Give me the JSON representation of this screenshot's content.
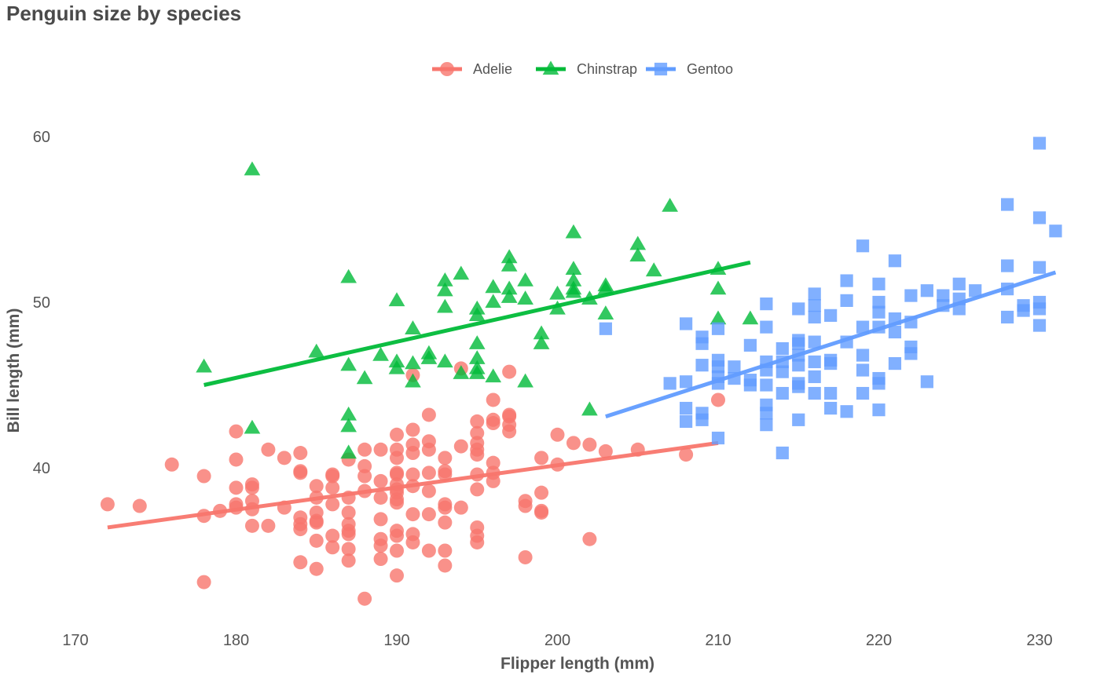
{
  "chart_data": {
    "type": "scatter",
    "title": "Penguin size by species",
    "xlabel": "Flipper length (mm)",
    "ylabel": "Bill length (mm)",
    "xlim": [
      168,
      233
    ],
    "ylim": [
      31,
      62
    ],
    "x_ticks": [
      170,
      180,
      190,
      200,
      210,
      220,
      230
    ],
    "y_ticks": [
      40,
      50,
      60
    ],
    "grid": false,
    "legend_position": "top",
    "series": [
      {
        "name": "Adelie",
        "color": "#F8766D",
        "marker": "circle",
        "trend": {
          "x": [
            172,
            210
          ],
          "y": [
            36.4,
            41.5
          ]
        },
        "points": [
          [
            172,
            37.8
          ],
          [
            174,
            37.7
          ],
          [
            176,
            40.2
          ],
          [
            178,
            39.5
          ],
          [
            178,
            37.1
          ],
          [
            178,
            33.1
          ],
          [
            179,
            37.4
          ],
          [
            180,
            42.2
          ],
          [
            180,
            40.5
          ],
          [
            180,
            38.8
          ],
          [
            180,
            37.8
          ],
          [
            180,
            37.6
          ],
          [
            181,
            39.0
          ],
          [
            181,
            38.8
          ],
          [
            181,
            38.0
          ],
          [
            181,
            37.5
          ],
          [
            181,
            36.5
          ],
          [
            182,
            41.1
          ],
          [
            182,
            36.5
          ],
          [
            183,
            40.6
          ],
          [
            183,
            37.6
          ],
          [
            184,
            40.9
          ],
          [
            184,
            39.8
          ],
          [
            184,
            39.7
          ],
          [
            184,
            37.0
          ],
          [
            184,
            36.6
          ],
          [
            184,
            36.3
          ],
          [
            184,
            34.3
          ],
          [
            185,
            38.9
          ],
          [
            185,
            38.2
          ],
          [
            185,
            37.3
          ],
          [
            185,
            36.8
          ],
          [
            185,
            36.7
          ],
          [
            185,
            35.6
          ],
          [
            185,
            33.9
          ],
          [
            186,
            39.6
          ],
          [
            186,
            39.5
          ],
          [
            186,
            38.8
          ],
          [
            186,
            37.8
          ],
          [
            186,
            35.9
          ],
          [
            186,
            35.2
          ],
          [
            187,
            40.5
          ],
          [
            187,
            38.2
          ],
          [
            187,
            37.3
          ],
          [
            187,
            36.6
          ],
          [
            187,
            36.2
          ],
          [
            187,
            36.0
          ],
          [
            187,
            35.1
          ],
          [
            187,
            34.4
          ],
          [
            188,
            41.1
          ],
          [
            188,
            40.1
          ],
          [
            188,
            39.5
          ],
          [
            188,
            38.6
          ],
          [
            188,
            32.1
          ],
          [
            189,
            41.1
          ],
          [
            189,
            39.2
          ],
          [
            189,
            38.2
          ],
          [
            189,
            36.9
          ],
          [
            189,
            35.7
          ],
          [
            189,
            35.3
          ],
          [
            189,
            34.5
          ],
          [
            190,
            42.0
          ],
          [
            190,
            41.1
          ],
          [
            190,
            40.6
          ],
          [
            190,
            39.7
          ],
          [
            190,
            39.6
          ],
          [
            190,
            39.0
          ],
          [
            190,
            38.7
          ],
          [
            190,
            38.5
          ],
          [
            190,
            38.1
          ],
          [
            190,
            37.9
          ],
          [
            190,
            36.2
          ],
          [
            190,
            35.9
          ],
          [
            190,
            35.0
          ],
          [
            190,
            33.5
          ],
          [
            191,
            45.6
          ],
          [
            191,
            42.3
          ],
          [
            191,
            41.4
          ],
          [
            191,
            40.9
          ],
          [
            191,
            39.6
          ],
          [
            191,
            38.9
          ],
          [
            191,
            37.2
          ],
          [
            191,
            36.0
          ],
          [
            191,
            35.5
          ],
          [
            192,
            43.2
          ],
          [
            192,
            41.6
          ],
          [
            192,
            41.1
          ],
          [
            192,
            39.7
          ],
          [
            192,
            38.6
          ],
          [
            192,
            37.2
          ],
          [
            192,
            35.0
          ],
          [
            193,
            40.6
          ],
          [
            193,
            39.8
          ],
          [
            193,
            39.6
          ],
          [
            193,
            37.8
          ],
          [
            193,
            37.6
          ],
          [
            193,
            36.7
          ],
          [
            193,
            35.0
          ],
          [
            193,
            34.1
          ],
          [
            194,
            46.0
          ],
          [
            194,
            41.3
          ],
          [
            194,
            37.6
          ],
          [
            195,
            42.8
          ],
          [
            195,
            42.1
          ],
          [
            195,
            41.5
          ],
          [
            195,
            41.1
          ],
          [
            195,
            40.8
          ],
          [
            195,
            39.6
          ],
          [
            195,
            38.7
          ],
          [
            195,
            36.4
          ],
          [
            195,
            35.9
          ],
          [
            195,
            35.5
          ],
          [
            196,
            44.1
          ],
          [
            196,
            42.9
          ],
          [
            196,
            42.7
          ],
          [
            196,
            40.3
          ],
          [
            196,
            39.7
          ],
          [
            196,
            39.2
          ],
          [
            197,
            45.8
          ],
          [
            197,
            43.2
          ],
          [
            197,
            43.1
          ],
          [
            197,
            42.6
          ],
          [
            197,
            42.2
          ],
          [
            198,
            38.0
          ],
          [
            198,
            37.7
          ],
          [
            198,
            34.6
          ],
          [
            199,
            40.6
          ],
          [
            199,
            38.5
          ],
          [
            199,
            37.4
          ],
          [
            199,
            37.3
          ],
          [
            200,
            42.0
          ],
          [
            200,
            40.2
          ],
          [
            201,
            41.5
          ],
          [
            202,
            41.4
          ],
          [
            202,
            35.7
          ],
          [
            203,
            41.0
          ],
          [
            205,
            41.1
          ],
          [
            208,
            40.8
          ],
          [
            210,
            44.1
          ]
        ]
      },
      {
        "name": "Chinstrap",
        "color": "#00BA38",
        "marker": "triangle",
        "trend": {
          "x": [
            178,
            212
          ],
          "y": [
            45.0,
            52.4
          ]
        },
        "points": [
          [
            178,
            46.1
          ],
          [
            181,
            58.0
          ],
          [
            181,
            42.4
          ],
          [
            185,
            47.0
          ],
          [
            187,
            51.5
          ],
          [
            187,
            46.2
          ],
          [
            187,
            43.2
          ],
          [
            187,
            42.5
          ],
          [
            187,
            40.9
          ],
          [
            188,
            45.4
          ],
          [
            189,
            46.8
          ],
          [
            190,
            50.1
          ],
          [
            190,
            46.4
          ],
          [
            190,
            46.0
          ],
          [
            191,
            48.4
          ],
          [
            191,
            46.3
          ],
          [
            191,
            45.2
          ],
          [
            192,
            46.9
          ],
          [
            192,
            46.6
          ],
          [
            193,
            51.3
          ],
          [
            193,
            50.7
          ],
          [
            193,
            49.7
          ],
          [
            193,
            46.4
          ],
          [
            194,
            51.7
          ],
          [
            194,
            45.7
          ],
          [
            195,
            49.6
          ],
          [
            195,
            49.2
          ],
          [
            195,
            47.5
          ],
          [
            195,
            46.6
          ],
          [
            195,
            46.0
          ],
          [
            195,
            45.7
          ],
          [
            196,
            50.9
          ],
          [
            196,
            50.0
          ],
          [
            196,
            45.5
          ],
          [
            197,
            52.7
          ],
          [
            197,
            52.2
          ],
          [
            197,
            50.8
          ],
          [
            197,
            50.3
          ],
          [
            198,
            51.3
          ],
          [
            198,
            50.2
          ],
          [
            198,
            45.2
          ],
          [
            199,
            48.1
          ],
          [
            199,
            47.5
          ],
          [
            200,
            50.5
          ],
          [
            200,
            49.6
          ],
          [
            201,
            54.2
          ],
          [
            201,
            52.0
          ],
          [
            201,
            51.3
          ],
          [
            201,
            50.8
          ],
          [
            201,
            50.6
          ],
          [
            202,
            50.2
          ],
          [
            202,
            43.5
          ],
          [
            203,
            51.0
          ],
          [
            203,
            50.8
          ],
          [
            203,
            49.3
          ],
          [
            205,
            53.5
          ],
          [
            205,
            52.8
          ],
          [
            206,
            51.9
          ],
          [
            207,
            55.8
          ],
          [
            210,
            52.0
          ],
          [
            210,
            50.8
          ],
          [
            210,
            49.0
          ],
          [
            212,
            49.0
          ]
        ]
      },
      {
        "name": "Gentoo",
        "color": "#619CFF",
        "marker": "square",
        "trend": {
          "x": [
            203,
            231
          ],
          "y": [
            43.1,
            51.8
          ]
        },
        "points": [
          [
            203,
            48.4
          ],
          [
            207,
            45.1
          ],
          [
            208,
            48.7
          ],
          [
            208,
            45.2
          ],
          [
            208,
            43.6
          ],
          [
            208,
            42.8
          ],
          [
            209,
            47.9
          ],
          [
            209,
            46.2
          ],
          [
            209,
            43.3
          ],
          [
            209,
            42.9
          ],
          [
            209,
            47.5
          ],
          [
            210,
            48.4
          ],
          [
            210,
            46.5
          ],
          [
            210,
            46.1
          ],
          [
            210,
            45.5
          ],
          [
            210,
            45.1
          ],
          [
            210,
            41.8
          ],
          [
            211,
            46.1
          ],
          [
            211,
            45.4
          ],
          [
            212,
            45.3
          ],
          [
            212,
            45.0
          ],
          [
            212,
            47.4
          ],
          [
            213,
            49.9
          ],
          [
            213,
            48.5
          ],
          [
            213,
            46.4
          ],
          [
            213,
            45.9
          ],
          [
            213,
            45.0
          ],
          [
            213,
            43.8
          ],
          [
            213,
            43.3
          ],
          [
            213,
            42.6
          ],
          [
            214,
            47.2
          ],
          [
            214,
            46.4
          ],
          [
            214,
            45.8
          ],
          [
            214,
            44.5
          ],
          [
            214,
            40.9
          ],
          [
            215,
            49.6
          ],
          [
            215,
            47.7
          ],
          [
            215,
            47.5
          ],
          [
            215,
            46.8
          ],
          [
            215,
            46.2
          ],
          [
            215,
            45.1
          ],
          [
            215,
            44.9
          ],
          [
            215,
            42.9
          ],
          [
            216,
            50.5
          ],
          [
            216,
            49.8
          ],
          [
            216,
            49.1
          ],
          [
            216,
            47.6
          ],
          [
            216,
            46.4
          ],
          [
            216,
            45.5
          ],
          [
            216,
            44.5
          ],
          [
            217,
            49.2
          ],
          [
            217,
            46.5
          ],
          [
            217,
            46.3
          ],
          [
            217,
            44.5
          ],
          [
            217,
            43.6
          ],
          [
            218,
            51.3
          ],
          [
            218,
            50.1
          ],
          [
            218,
            47.6
          ],
          [
            218,
            43.4
          ],
          [
            219,
            53.4
          ],
          [
            219,
            48.5
          ],
          [
            219,
            46.8
          ],
          [
            219,
            45.9
          ],
          [
            219,
            44.5
          ],
          [
            220,
            51.1
          ],
          [
            220,
            50.0
          ],
          [
            220,
            49.4
          ],
          [
            220,
            48.5
          ],
          [
            220,
            45.4
          ],
          [
            220,
            45.1
          ],
          [
            220,
            43.5
          ],
          [
            221,
            52.5
          ],
          [
            221,
            49.0
          ],
          [
            221,
            48.2
          ],
          [
            221,
            46.3
          ],
          [
            222,
            50.4
          ],
          [
            222,
            48.8
          ],
          [
            222,
            47.3
          ],
          [
            222,
            46.9
          ],
          [
            223,
            45.2
          ],
          [
            223,
            50.7
          ],
          [
            224,
            50.4
          ],
          [
            224,
            49.8
          ],
          [
            225,
            51.1
          ],
          [
            225,
            50.2
          ],
          [
            225,
            49.6
          ],
          [
            226,
            50.7
          ],
          [
            228,
            55.9
          ],
          [
            228,
            52.2
          ],
          [
            228,
            50.8
          ],
          [
            228,
            49.1
          ],
          [
            229,
            49.8
          ],
          [
            229,
            49.5
          ],
          [
            230,
            59.6
          ],
          [
            230,
            55.1
          ],
          [
            230,
            52.1
          ],
          [
            230,
            50.0
          ],
          [
            230,
            49.6
          ],
          [
            230,
            48.6
          ],
          [
            231,
            54.3
          ]
        ]
      }
    ]
  }
}
